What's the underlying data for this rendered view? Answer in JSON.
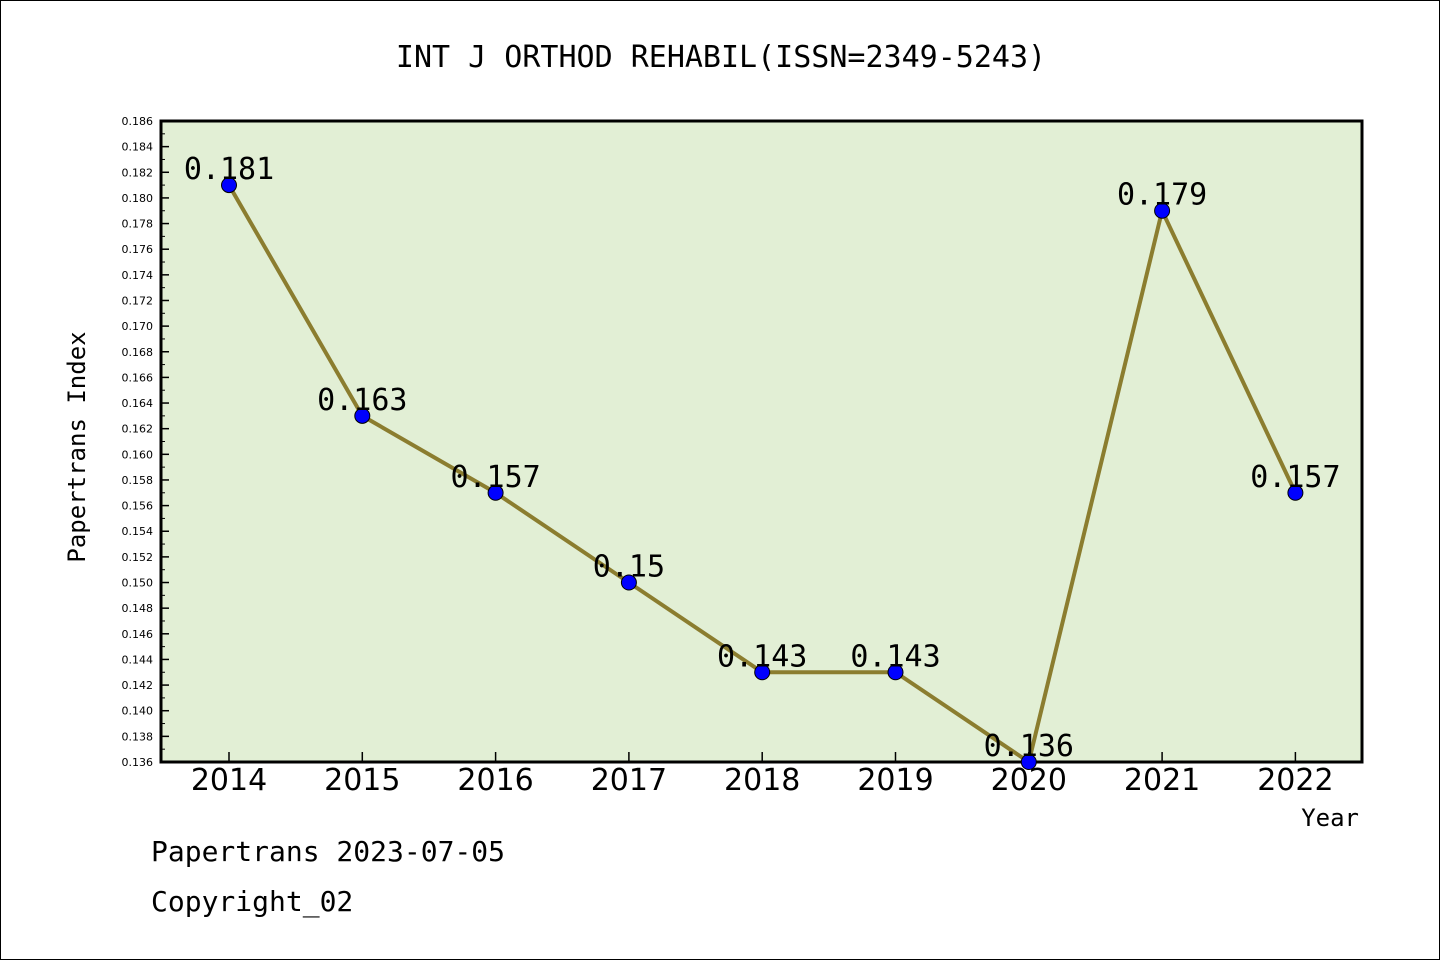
{
  "chart_data": {
    "type": "line",
    "title": "INT J ORTHOD REHABIL(ISSN=2349-5243)",
    "xlabel": "Year",
    "ylabel": "Papertrans Index",
    "categories": [
      "2014",
      "2015",
      "2016",
      "2017",
      "2018",
      "2019",
      "2020",
      "2021",
      "2022"
    ],
    "series": [
      {
        "values": [
          0.181,
          0.163,
          0.157,
          0.15,
          0.143,
          0.143,
          0.136,
          0.179,
          0.157
        ],
        "labels": [
          "0.181",
          "0.163",
          "0.157",
          "0.15",
          "0.143",
          "0.143",
          "0.136",
          "0.179",
          "0.157"
        ]
      }
    ],
    "ylim": [
      0.136,
      0.186
    ],
    "ytick_step": 0.002,
    "grid": false,
    "colors": {
      "plot_background": "#e2efd5",
      "line": "#8b7d2f",
      "marker": "#0000ff"
    }
  },
  "footer": {
    "date_line": "Papertrans 2023-07-05",
    "copyright_line": "Copyright_02"
  }
}
